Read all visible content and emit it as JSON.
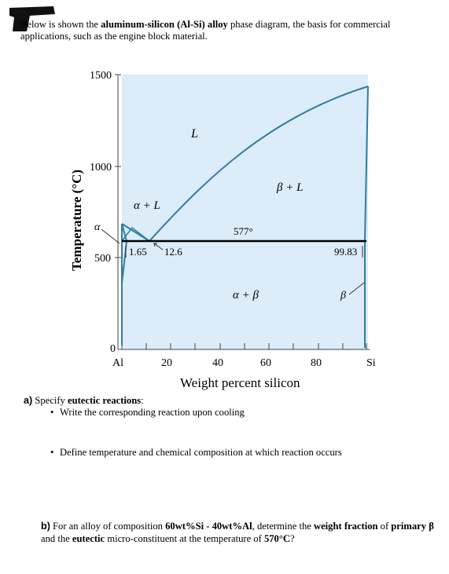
{
  "intro": {
    "t1": "Below is shown the ",
    "b1": "aluminum-silicon (Al-Si) alloy",
    "t2": " phase diagram, the basis for commercial applications, such as the engine block material."
  },
  "diagram": {
    "y_axis_label": "Temperature (°C)",
    "x_axis_label": "Weight percent silicon",
    "y_ticks": [
      "1500",
      "1000",
      "500",
      "0"
    ],
    "x_ticks": [
      "Al",
      "20",
      "40",
      "60",
      "80",
      "Si"
    ],
    "regions": {
      "liquid": "L",
      "alpha_liquid": "α + L",
      "beta_liquid": "β + L",
      "alpha_beta": "α + β",
      "alpha": "α",
      "beta": "β"
    },
    "annotations": {
      "eutectic_temp": "577°",
      "alpha_limit": "1.65",
      "eutectic_comp": "12.6",
      "beta_limit": "99.83"
    },
    "colors": {
      "fill": "#dcecf8",
      "phase_line": "#2f7ea3",
      "eutectic_line": "#000000"
    }
  },
  "questions": {
    "a_label": "a)",
    "a_text1": " Specify ",
    "a_bold": "eutectic reactions",
    "a_text2": ":",
    "a_bullet1": "Write the corresponding reaction upon cooling",
    "a_bullet2": "Define temperature and chemical composition at which reaction occurs",
    "b_label": "b)",
    "b_t1": " For an alloy of composition ",
    "b_bold1": "60wt%Si - 40wt%Al",
    "b_t2": ", determine the ",
    "b_bold2": "weight fraction",
    "b_t3": " of ",
    "b_bold3": "primary β",
    "b_t4": " and the ",
    "b_bold4": "eutectic",
    "b_t5": " micro-constituent at the temperature of ",
    "b_bold5": "570°C",
    "b_t6": "?"
  }
}
